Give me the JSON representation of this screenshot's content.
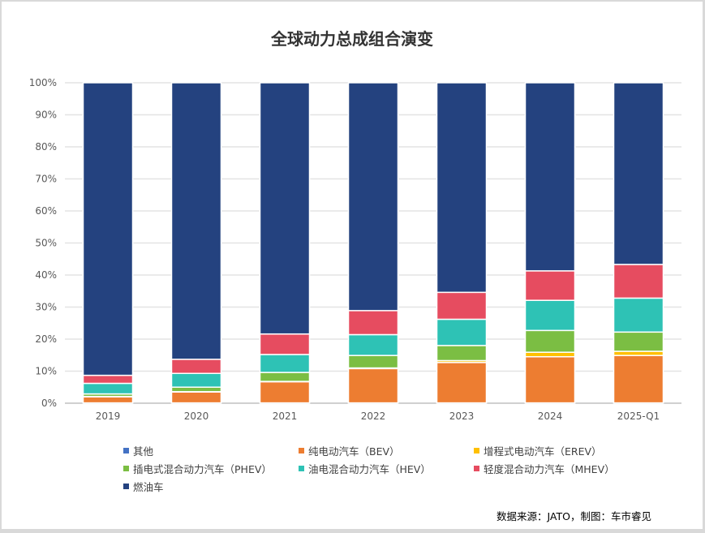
{
  "chart_data": {
    "type": "bar",
    "stacked": true,
    "title": "全球动力总成组合演变",
    "xlabel": "",
    "ylabel": "",
    "ylim": [
      0,
      100
    ],
    "yticks": [
      "0%",
      "10%",
      "20%",
      "30%",
      "40%",
      "50%",
      "60%",
      "70%",
      "80%",
      "90%",
      "100%"
    ],
    "grid": true,
    "legend_position": "bottom",
    "categories": [
      "2019",
      "2020",
      "2021",
      "2022",
      "2023",
      "2024",
      "2025-Q1"
    ],
    "series": [
      {
        "name": "其他",
        "color": "#4472C4",
        "values": [
          0.1,
          0.1,
          0.1,
          0.1,
          0.1,
          0.1,
          0.1
        ]
      },
      {
        "name": "纯电动汽车（BEV）",
        "color": "#ED7D31",
        "values": [
          1.9,
          3.4,
          6.6,
          10.7,
          12.6,
          14.4,
          14.8
        ]
      },
      {
        "name": "增程式电动汽车（EREV）",
        "color": "#FFC000",
        "values": [
          0.1,
          0.1,
          0.1,
          0.2,
          0.6,
          1.4,
          1.3
        ]
      },
      {
        "name": "插电式混合动力汽车（PHEV）",
        "color": "#7BBE43",
        "values": [
          0.8,
          1.4,
          2.8,
          3.9,
          4.7,
          6.8,
          6.0
        ]
      },
      {
        "name": "油电混合动力汽车（HEV）",
        "color": "#2EC2B5",
        "values": [
          3.3,
          4.3,
          5.6,
          6.5,
          8.2,
          9.4,
          10.6
        ]
      },
      {
        "name": "轻度混合动力汽车（MHEV）",
        "color": "#E64C60",
        "values": [
          2.5,
          4.4,
          6.4,
          7.5,
          8.4,
          9.2,
          10.5
        ]
      },
      {
        "name": "燃油车",
        "color": "#24427F",
        "values": [
          91.3,
          86.3,
          78.4,
          71.1,
          65.4,
          58.7,
          56.7
        ]
      }
    ]
  },
  "source_note": "数据来源：JATO，制图：车市睿见"
}
